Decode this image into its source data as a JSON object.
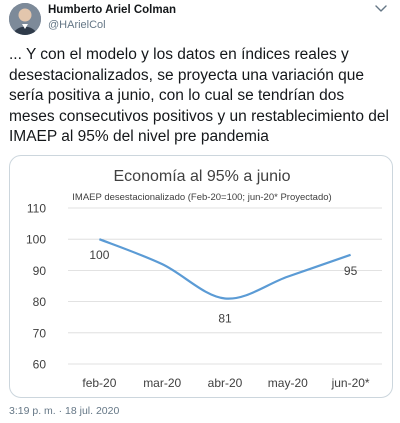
{
  "tweet": {
    "author_name": "Humberto Ariel Colman",
    "author_handle": "@HArielCol",
    "text": "... Y con el modelo y los datos en índices reales y desestacionalizados, se proyecta una variación que sería positiva a junio, con lo cual se tendrían dos meses consecutivos positivos y un restablecimiento del IMAEP al 95% del nivel pre pandemia",
    "timestamp": "3:19 p. m. · 18 jul. 2020",
    "caret_icon": "chevron-down-icon",
    "avatar_icon": "profile-photo"
  },
  "colors": {
    "line": "#5b9bd5",
    "grid": "#d9d9d9",
    "text": "#404040",
    "title": "#404040"
  },
  "chart_data": {
    "type": "line",
    "title": "Economía al 95% a junio",
    "subtitle": "IMAEP desestacionalizado (Feb-20=100; jun-20* Proyectado)",
    "categories": [
      "feb-20",
      "mar-20",
      "abr-20",
      "may-20",
      "jun-20*"
    ],
    "series": [
      {
        "values": [
          100,
          92,
          81,
          88,
          95
        ]
      }
    ],
    "data_labels": [
      "100",
      "",
      "81",
      "",
      "95"
    ],
    "yticks": [
      60,
      70,
      80,
      90,
      100,
      110
    ],
    "ylim": [
      60,
      110
    ],
    "grid": true,
    "legend": "none"
  }
}
